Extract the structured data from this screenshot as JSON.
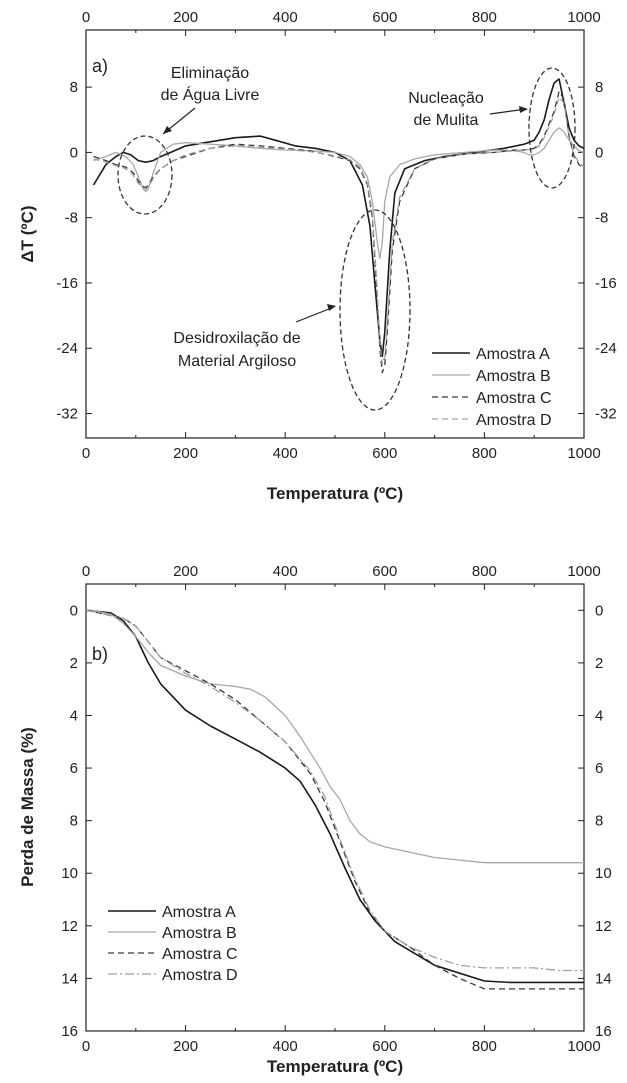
{
  "colors": {
    "amostra_a": "#1a1a1a",
    "amostra_b": "#a8a8a8",
    "amostra_c": "#3a3a3a",
    "amostra_d": "#a0a0a0",
    "axis": "#222222"
  },
  "chart_data": [
    {
      "type": "line",
      "panel_label": "a)",
      "xlabel": "Temperatura (ºC)",
      "ylabel": "ΔT (ºC)",
      "xlim": [
        0,
        1000
      ],
      "ylim": [
        -35,
        15
      ],
      "x_ticks": [
        0,
        200,
        400,
        600,
        800,
        1000
      ],
      "y_ticks": [
        8,
        0,
        -8,
        -16,
        -24,
        -32
      ],
      "legend_position": "bottom-right",
      "annotations": [
        {
          "text_lines": [
            "Eliminação",
            "de Água Livre"
          ]
        },
        {
          "text_lines": [
            "Nucleação",
            "de Mulita"
          ]
        },
        {
          "text_lines": [
            "Desidroxilação de",
            "Material Argiloso"
          ]
        }
      ],
      "series": [
        {
          "name": "Amostra A",
          "style": "solid",
          "x": [
            15,
            40,
            60,
            75,
            90,
            105,
            120,
            135,
            150,
            170,
            200,
            240,
            300,
            350,
            380,
            420,
            460,
            500,
            530,
            555,
            570,
            580,
            590,
            595,
            600,
            610,
            620,
            640,
            680,
            720,
            780,
            840,
            880,
            900,
            910,
            920,
            930,
            940,
            950,
            960,
            970,
            980,
            990,
            1000
          ],
          "y": [
            -4,
            -1.5,
            -0.5,
            0,
            -0.3,
            -1,
            -1.2,
            -1,
            -0.5,
            0,
            0.8,
            1.2,
            1.8,
            2,
            1.5,
            0.8,
            0.5,
            0,
            -1,
            -4,
            -9,
            -16,
            -23,
            -25,
            -22,
            -12,
            -5,
            -2,
            -1,
            -0.5,
            0,
            0.5,
            1,
            1.5,
            2.5,
            4,
            6.5,
            8.5,
            9,
            6,
            3,
            1.5,
            0.8,
            0.5
          ]
        },
        {
          "name": "Amostra B",
          "style": "solid",
          "x": [
            15,
            40,
            60,
            80,
            95,
            105,
            115,
            120,
            125,
            135,
            150,
            175,
            200,
            250,
            300,
            350,
            400,
            450,
            500,
            530,
            550,
            565,
            575,
            585,
            590,
            595,
            600,
            610,
            630,
            660,
            700,
            760,
            820,
            860,
            880,
            890,
            900,
            910,
            920,
            930,
            940,
            950,
            960,
            970,
            980,
            990,
            1000
          ],
          "y": [
            -1,
            -0.5,
            0,
            -0.5,
            -1.5,
            -3,
            -4.5,
            -4.8,
            -4.5,
            -2.5,
            0,
            1,
            1.2,
            1,
            0.8,
            0.5,
            0.3,
            0.2,
            0,
            -0.5,
            -1.5,
            -3,
            -6,
            -11,
            -13,
            -11,
            -6,
            -3,
            -1.5,
            -0.8,
            -0.3,
            0,
            0.3,
            0.2,
            0,
            -0.3,
            -0.3,
            0,
            0.5,
            1.5,
            2.5,
            3,
            2.5,
            1.5,
            0.8,
            0.2,
            0
          ]
        },
        {
          "name": "Amostra C",
          "style": "dashed",
          "x": [
            15,
            40,
            60,
            80,
            95,
            105,
            115,
            120,
            125,
            135,
            150,
            175,
            200,
            250,
            300,
            350,
            400,
            450,
            500,
            530,
            550,
            565,
            575,
            583,
            590,
            595,
            600,
            605,
            615,
            630,
            660,
            700,
            760,
            820,
            860,
            880,
            900,
            910,
            920,
            930,
            940,
            950,
            960,
            970,
            980,
            990,
            1000
          ],
          "y": [
            -0.5,
            -1,
            -1.5,
            -1.8,
            -2.5,
            -3.5,
            -4.2,
            -4.3,
            -4,
            -3,
            -2,
            -1,
            -0.5,
            0.5,
            1,
            0.8,
            0.5,
            0.2,
            -0.5,
            -1,
            -2,
            -4,
            -8,
            -16,
            -24,
            -27,
            -26,
            -22,
            -12,
            -6,
            -2,
            -0.8,
            -0.2,
            0,
            0.3,
            0.3,
            0.5,
            1,
            2,
            3.5,
            5,
            7.5,
            6.5,
            2,
            -0.5,
            -1.5,
            -2
          ]
        },
        {
          "name": "Amostra D",
          "style": "dashed",
          "x": [
            15,
            40,
            60,
            80,
            95,
            105,
            115,
            120,
            125,
            135,
            150,
            175,
            200,
            250,
            300,
            350,
            400,
            450,
            500,
            530,
            550,
            565,
            575,
            583,
            590,
            595,
            600,
            605,
            615,
            630,
            660,
            700,
            760,
            820,
            860,
            880,
            900,
            910,
            920,
            930,
            940,
            950,
            960,
            970,
            980,
            990,
            1000
          ],
          "y": [
            -0.8,
            -1.2,
            -1.6,
            -2,
            -2.8,
            -3.8,
            -4.3,
            -4.5,
            -4.2,
            -3.2,
            -2,
            -1,
            -0.3,
            0.5,
            0.8,
            0.6,
            0.4,
            0.1,
            -0.4,
            -0.9,
            -1.8,
            -3.8,
            -7.5,
            -15,
            -23,
            -26,
            -25,
            -21,
            -11,
            -5.5,
            -2,
            -0.8,
            -0.2,
            0,
            0.2,
            0.3,
            0.4,
            0.8,
            1.8,
            3.2,
            4.6,
            6.8,
            6,
            1.8,
            -0.3,
            -1.2,
            -1.8
          ]
        }
      ]
    },
    {
      "type": "line",
      "panel_label": "b)",
      "xlabel": "Temperatura (ºC)",
      "ylabel": "Perda de Massa (%)",
      "xlim": [
        0,
        1000
      ],
      "ylim": [
        16,
        -1
      ],
      "y_inverted": true,
      "x_ticks": [
        0,
        200,
        400,
        600,
        800,
        1000
      ],
      "y_ticks": [
        0,
        2,
        4,
        6,
        8,
        10,
        12,
        14,
        16
      ],
      "legend_position": "bottom-left",
      "series": [
        {
          "name": "Amostra A",
          "style": "solid",
          "x": [
            0,
            25,
            50,
            75,
            100,
            125,
            150,
            200,
            250,
            300,
            350,
            400,
            430,
            460,
            490,
            520,
            550,
            580,
            620,
            700,
            800,
            850,
            900,
            950,
            1000
          ],
          "y": [
            0,
            0.05,
            0.1,
            0.4,
            1,
            2,
            2.8,
            3.8,
            4.4,
            4.9,
            5.4,
            6,
            6.5,
            7.4,
            8.5,
            9.8,
            11,
            11.8,
            12.6,
            13.5,
            14.1,
            14.15,
            14.15,
            14.15,
            14.15
          ]
        },
        {
          "name": "Amostra B",
          "style": "solid",
          "x": [
            0,
            25,
            50,
            75,
            100,
            125,
            150,
            200,
            250,
            300,
            330,
            360,
            400,
            430,
            450,
            470,
            490,
            510,
            530,
            550,
            570,
            600,
            650,
            700,
            750,
            800,
            850,
            900,
            950,
            1000
          ],
          "y": [
            0,
            0.05,
            0.15,
            0.5,
            1,
            1.6,
            2.1,
            2.5,
            2.8,
            2.9,
            3,
            3.3,
            4,
            4.8,
            5.4,
            6,
            6.7,
            7.2,
            8,
            8.5,
            8.8,
            9,
            9.2,
            9.4,
            9.5,
            9.6,
            9.6,
            9.6,
            9.6,
            9.6
          ]
        },
        {
          "name": "Amostra C",
          "style": "dashed",
          "x": [
            0,
            25,
            50,
            75,
            100,
            125,
            150,
            200,
            250,
            300,
            350,
            400,
            450,
            480,
            510,
            540,
            570,
            600,
            650,
            700,
            750,
            800,
            850,
            900,
            950,
            1000
          ],
          "y": [
            0,
            0.1,
            0.2,
            0.3,
            0.6,
            1.2,
            1.8,
            2.3,
            2.8,
            3.4,
            4.2,
            5,
            6.2,
            7.3,
            8.8,
            10.3,
            11.5,
            12.2,
            12.8,
            13.5,
            14,
            14.4,
            14.4,
            14.4,
            14.4,
            14.4
          ]
        },
        {
          "name": "Amostra D",
          "style": "dashdot",
          "x": [
            0,
            25,
            50,
            75,
            100,
            125,
            150,
            200,
            250,
            300,
            350,
            400,
            450,
            480,
            510,
            540,
            570,
            600,
            650,
            700,
            750,
            800,
            850,
            900,
            950,
            1000
          ],
          "y": [
            0,
            0.1,
            0.2,
            0.3,
            0.6,
            1.2,
            1.8,
            2.4,
            2.9,
            3.5,
            4.2,
            5,
            6.1,
            7.1,
            8.7,
            10.2,
            11.4,
            12.2,
            12.8,
            13.2,
            13.5,
            13.6,
            13.6,
            13.6,
            13.7,
            13.7
          ]
        }
      ]
    }
  ]
}
